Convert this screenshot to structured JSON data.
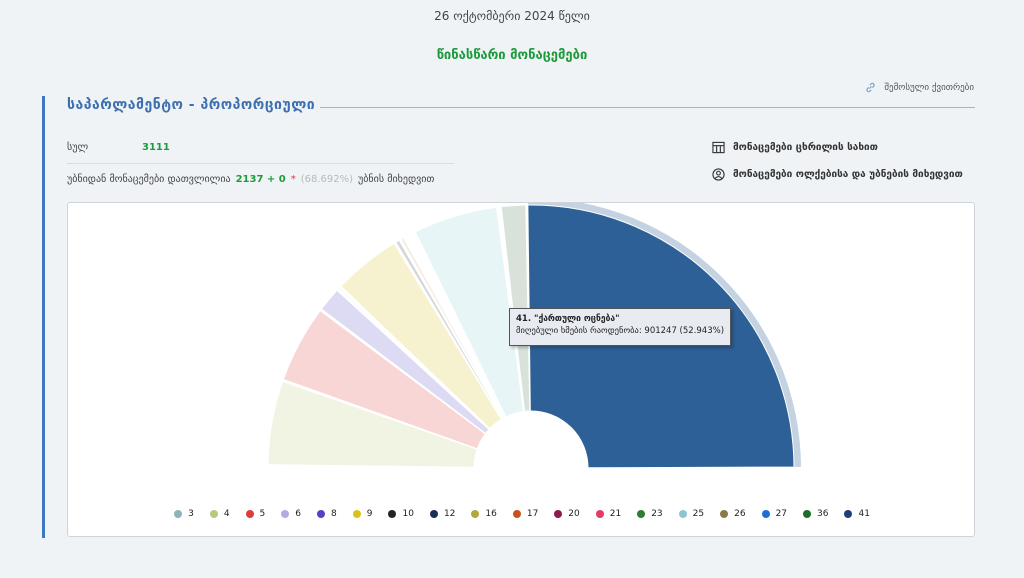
{
  "header": {
    "date": "26 ოქტომბერი 2024 წელი",
    "title": "წინასწარი მონაცემები",
    "history_link": "შემოსული ქვითრები"
  },
  "section": {
    "title": "საპარლამენტო - პროპორციული"
  },
  "stats": {
    "total_label": "სულ",
    "total_value": "3111",
    "counted_label": "უბნიდან მონაცემები დათვლილია",
    "counted_value": "2137 + 0",
    "star": "*",
    "counted_pct": "(68.692%)",
    "counted_suffix": "უბნის მიხედვით"
  },
  "links": {
    "table_view": "მონაცემები ცხრილის სახით",
    "by_district": "მონაცემები ოლქებისა და უბნების მიხედვით"
  },
  "tooltip": {
    "line1": "41. \"ქართული ოცნება\"",
    "line2_label": "მიღებული ხმების რაოდენობა:",
    "line2_value": "901247 (52.943%)"
  },
  "chart_data": {
    "type": "pie",
    "shape": "semicircle-donut",
    "hovered": "41",
    "series": [
      {
        "name": "3",
        "color": "#8fb3bd",
        "fill": "#e9eef0",
        "share": 0.3
      },
      {
        "name": "4",
        "color": "#b7c97a",
        "fill": "#f1f3e3",
        "share": 11.03
      },
      {
        "name": "5",
        "color": "#e03a3a",
        "fill": "#f9d6d6",
        "share": 10.2
      },
      {
        "name": "6",
        "color": "#b9a9e3",
        "fill": "#dddaf3",
        "share": 3.35
      },
      {
        "name": "8",
        "color": "#5b3ec8",
        "fill": "#ece8f7",
        "share": 0.45
      },
      {
        "name": "9",
        "color": "#d9c21c",
        "fill": "#f6f2cf",
        "share": 8.95
      },
      {
        "name": "10",
        "color": "#222222",
        "fill": "#d4d6da",
        "share": 0.75
      },
      {
        "name": "12",
        "color": "#1c2d5a",
        "fill": "#f2ede0",
        "share": 0.65
      },
      {
        "name": "16",
        "color": "#b3a93a",
        "fill": "#f4f0e2",
        "share": 0.4
      },
      {
        "name": "17",
        "color": "#c8501e",
        "fill": "#fbf6ec",
        "share": 0.3
      },
      {
        "name": "20",
        "color": "#8c1a4a",
        "fill": "#f2eef4",
        "share": 0.25
      },
      {
        "name": "21",
        "color": "#e83a6a",
        "fill": "#faf4f5",
        "share": 0.25
      },
      {
        "name": "23",
        "color": "#2e7d32",
        "fill": "#eef6ef",
        "share": 0.2
      },
      {
        "name": "25",
        "color": "#8dc6d0",
        "fill": "#e8f5f6",
        "share": 11.07
      },
      {
        "name": "26",
        "color": "#8a7a4a",
        "fill": "#f3f0e7",
        "share": 0.2
      },
      {
        "name": "27",
        "color": "#1e6fd0",
        "fill": "#e7eef9",
        "share": 0.15
      },
      {
        "name": "36",
        "color": "#1e6e2a",
        "fill": "#d9e2da",
        "share": 3.38
      },
      {
        "name": "41",
        "color": "#1d3e78",
        "fill": "#2d6097",
        "share": 52.943,
        "votes": 901247
      }
    ]
  }
}
